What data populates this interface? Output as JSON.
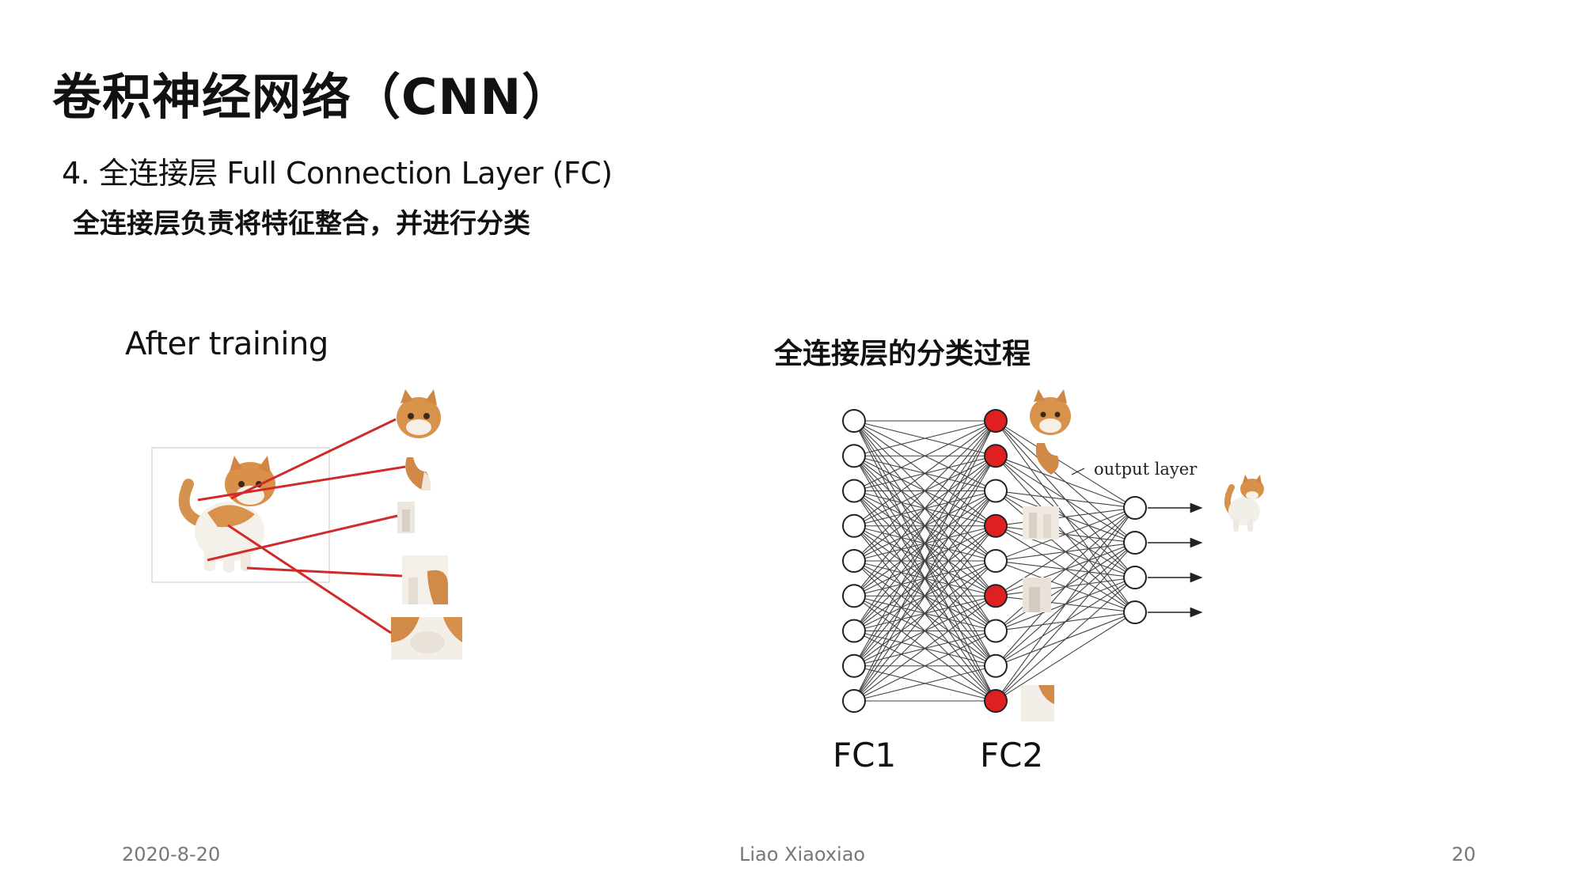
{
  "slide": {
    "title": "卷积神经网络（CNN）",
    "subtitle": "4. 全连接层 Full Connection Layer (FC)",
    "description": "全连接层负责将特征整合，并进行分类"
  },
  "left_figure": {
    "caption": "After training"
  },
  "right_figure": {
    "caption": "全连接层的分类过程",
    "output_label": "output layer",
    "fc1_label": "FC1",
    "fc2_label": "FC2",
    "fc1_node_count": 9,
    "fc2_node_count": 9,
    "fc2_red_nodes": [
      0,
      1,
      3,
      5,
      8
    ],
    "output_node_count": 4,
    "colors": {
      "active_node": "#e02020",
      "edge": "#222222",
      "feature_line": "#d02a2a"
    }
  },
  "footer": {
    "date": "2020-8-20",
    "author": "Liao Xiaoxiao",
    "page_number": "20"
  }
}
